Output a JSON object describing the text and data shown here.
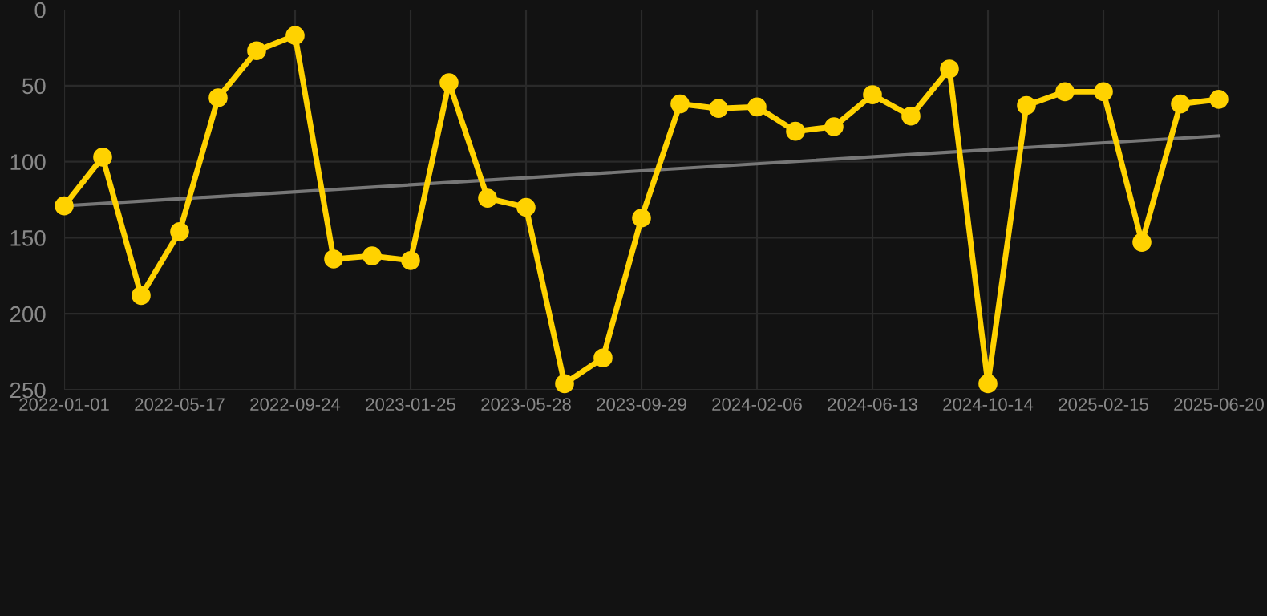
{
  "chart_data": {
    "type": "line",
    "categories": [
      "2022-01-01",
      null,
      null,
      "2022-05-17",
      null,
      null,
      "2022-09-24",
      null,
      null,
      "2023-01-25",
      null,
      null,
      "2023-05-28",
      null,
      null,
      "2023-09-29",
      null,
      null,
      "2024-02-06",
      null,
      null,
      "2024-06-13",
      null,
      null,
      "2024-10-14",
      null,
      null,
      "2025-02-15",
      null,
      null,
      "2025-06-20"
    ],
    "series": [
      {
        "color": "#ffd200",
        "marker": "circle",
        "values": [
          129,
          97,
          188,
          146,
          58,
          27,
          17,
          164,
          162,
          165,
          48,
          124,
          130,
          246,
          229,
          137,
          62,
          65,
          64,
          80,
          77,
          56,
          70,
          39,
          246,
          63,
          54,
          54,
          153,
          62,
          59
        ]
      },
      {
        "type": "line",
        "color": "#777777",
        "marker": "none",
        "values": [
          129,
          null,
          null,
          null,
          null,
          null,
          null,
          null,
          null,
          null,
          null,
          null,
          null,
          null,
          null,
          null,
          null,
          null,
          null,
          null,
          null,
          null,
          null,
          null,
          null,
          null,
          null,
          null,
          null,
          null,
          83
        ]
      }
    ],
    "ylim": [
      250,
      0
    ],
    "yticks": [
      0,
      50,
      100,
      150,
      200,
      250
    ],
    "grid": true
  }
}
